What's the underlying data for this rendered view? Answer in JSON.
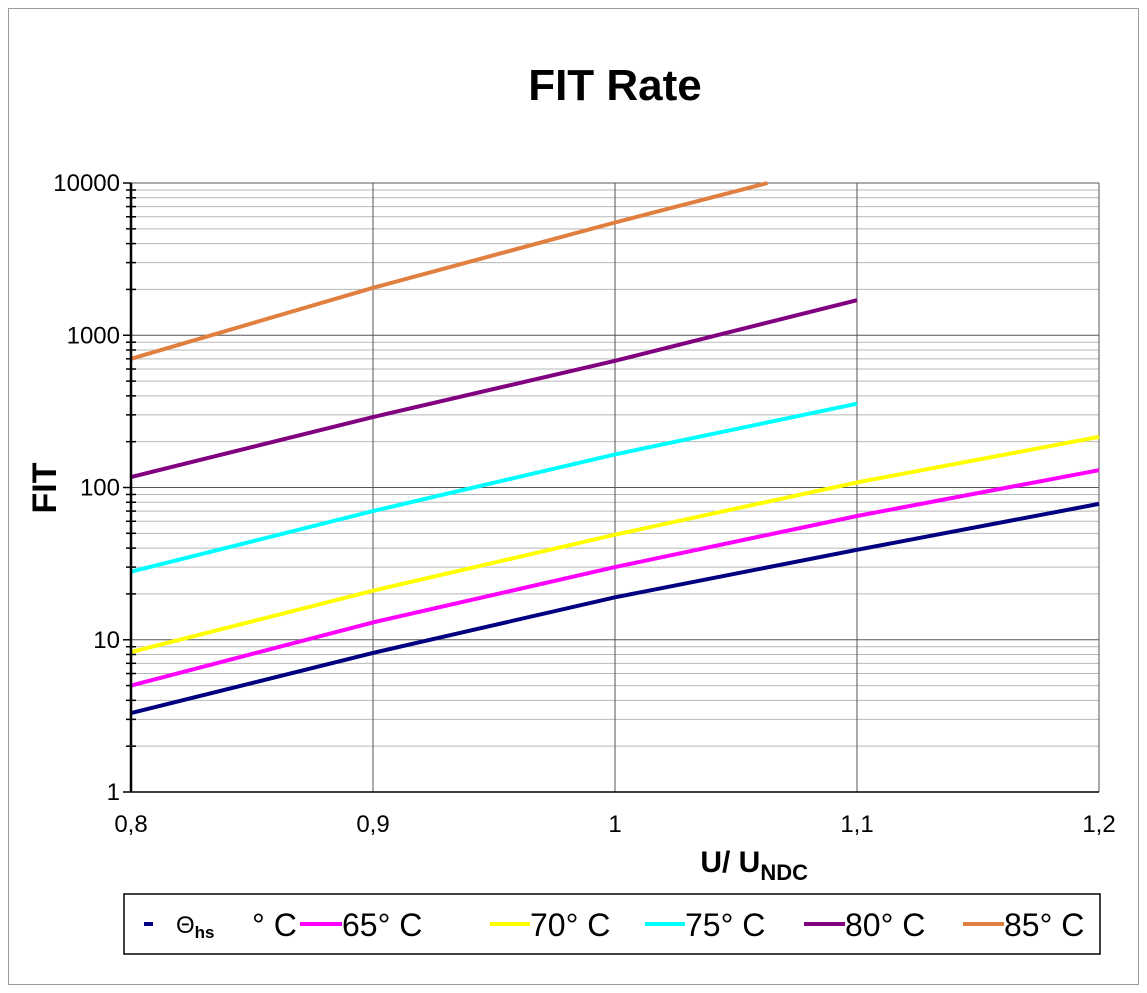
{
  "chart_data": {
    "type": "line",
    "title": "FIT Rate",
    "xlabel": "U/ U",
    "xlabel_sub": "NDC",
    "ylabel": "FIT",
    "xlim": [
      0.8,
      1.2
    ],
    "ylim": [
      1,
      10000
    ],
    "yscale": "log",
    "grid": true,
    "legend_position": "bottom",
    "x_ticks": [
      "0,8",
      "0,9",
      "1",
      "1,1",
      "1,2"
    ],
    "y_ticks": [
      "1",
      "10",
      "100",
      "1000",
      "10000"
    ],
    "x_tick_values": [
      0.8,
      0.9,
      1.0,
      1.1,
      1.2
    ],
    "y_tick_values": [
      1,
      10,
      100,
      1000,
      10000
    ],
    "legend_symbol": "Θ",
    "legend_symbol_sub": "hs",
    "series": [
      {
        "name": "° C",
        "color": "#000080",
        "x": [
          0.8,
          0.9,
          1.0,
          1.1,
          1.2
        ],
        "y": [
          3.3,
          8.2,
          19,
          39,
          78
        ]
      },
      {
        "name": "65° C",
        "color": "#ff00ff",
        "x": [
          0.8,
          0.9,
          1.0,
          1.1,
          1.2
        ],
        "y": [
          5,
          13,
          30,
          65,
          130
        ]
      },
      {
        "name": "70° C",
        "color": "#ffff00",
        "x": [
          0.8,
          0.9,
          1.0,
          1.1,
          1.2
        ],
        "y": [
          8.3,
          21,
          49,
          108,
          215
        ]
      },
      {
        "name": "75° C",
        "color": "#00ffff",
        "x": [
          0.8,
          0.9,
          1.0,
          1.1
        ],
        "y": [
          28,
          70,
          165,
          355
        ]
      },
      {
        "name": "80° C",
        "color": "#800080",
        "x": [
          0.8,
          0.9,
          1.0,
          1.1
        ],
        "y": [
          117,
          290,
          680,
          1700
        ]
      },
      {
        "name": "85° C",
        "color": "#e07f3f",
        "x": [
          0.8,
          0.9,
          1.0,
          1.063
        ],
        "y": [
          700,
          2050,
          5500,
          10000
        ]
      }
    ]
  }
}
